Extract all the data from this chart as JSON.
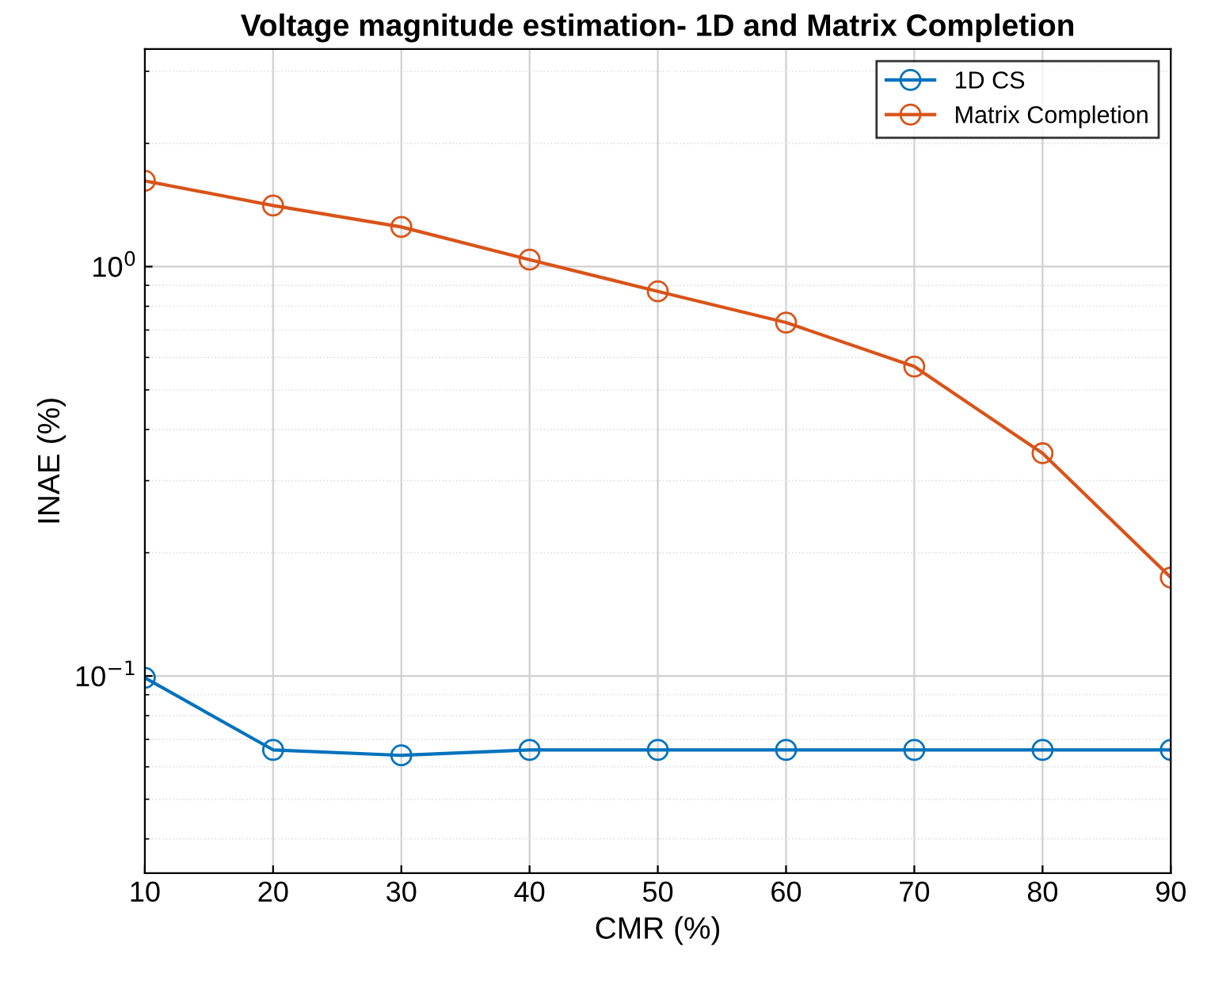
{
  "chart_data": {
    "type": "line",
    "title": "Voltage magnitude estimation- 1D and Matrix Completion",
    "xlabel": "CMR (%)",
    "ylabel": "INAE (%)",
    "x": [
      10,
      20,
      30,
      40,
      50,
      60,
      70,
      80,
      90
    ],
    "series": [
      {
        "name": "1D CS",
        "color": "#0072bd",
        "values": [
          0.099,
          0.066,
          0.064,
          0.066,
          0.066,
          0.066,
          0.066,
          0.066,
          0.066
        ]
      },
      {
        "name": "Matrix Completion",
        "color": "#d95319",
        "values": [
          1.62,
          1.41,
          1.25,
          1.04,
          0.87,
          0.73,
          0.57,
          0.35,
          0.174
        ]
      }
    ],
    "xlim": [
      10,
      90
    ],
    "xticks": [
      10,
      20,
      30,
      40,
      50,
      60,
      70,
      80,
      90
    ],
    "ylim": [
      0.033,
      3.4
    ],
    "yticks": [
      {
        "value": 0.1,
        "label": "10$^{−1}$"
      },
      {
        "value": 1,
        "label": "10$^{0}$"
      }
    ],
    "log": "y",
    "grid": true,
    "legend": "top right",
    "marker": "circle",
    "line_style": "solid"
  }
}
